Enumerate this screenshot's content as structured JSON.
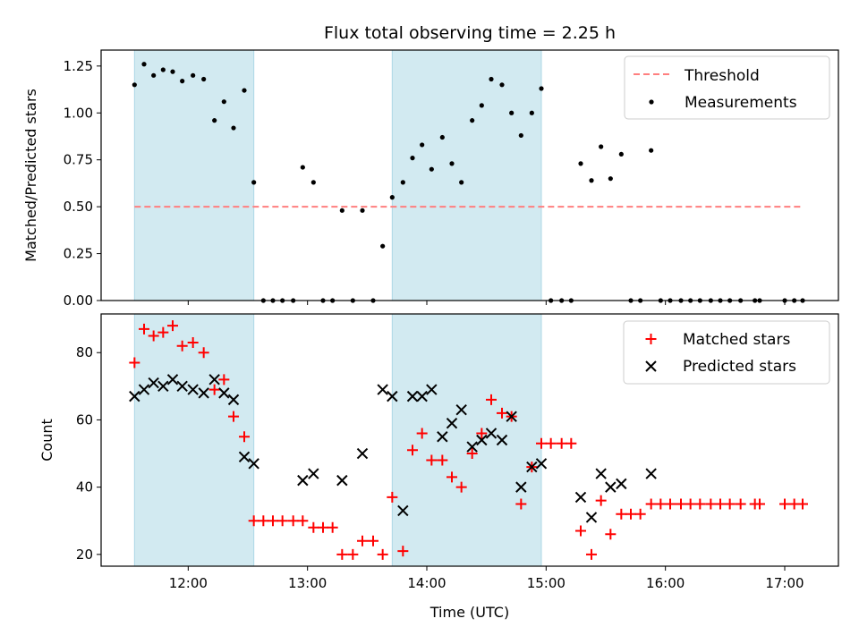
{
  "chart_data": [
    {
      "type": "scatter",
      "title": "Flux total observing time = 2.25 h",
      "xlabel": "",
      "ylabel": "Matched/Predicted stars",
      "xlim": [
        11.27,
        17.45
      ],
      "ylim": [
        0.0,
        1.335
      ],
      "x_ticks": [
        12,
        13,
        14,
        15,
        16,
        17
      ],
      "y_ticks": [
        0.0,
        0.25,
        0.5,
        0.75,
        1.0,
        1.25
      ],
      "y_tick_labels": [
        "0.00",
        "0.25",
        "0.50",
        "0.75",
        "1.00",
        "1.25"
      ],
      "shaded_x_ranges": [
        [
          11.55,
          12.55
        ],
        [
          13.71,
          14.96
        ]
      ],
      "shade_color": "#add8e6",
      "threshold": {
        "name": "Threshold",
        "y": 0.5,
        "x_range": [
          11.55,
          17.15
        ],
        "color": "#ff7f7f"
      },
      "legend": [
        "Threshold",
        "Measurements"
      ],
      "legend_loc": "upper right",
      "series": [
        {
          "name": "Measurements",
          "color": "#000000",
          "points": [
            [
              11.55,
              1.15
            ],
            [
              11.63,
              1.26
            ],
            [
              11.71,
              1.2
            ],
            [
              11.79,
              1.23
            ],
            [
              11.87,
              1.22
            ],
            [
              11.95,
              1.17
            ],
            [
              12.04,
              1.2
            ],
            [
              12.13,
              1.18
            ],
            [
              12.22,
              0.96
            ],
            [
              12.3,
              1.06
            ],
            [
              12.38,
              0.92
            ],
            [
              12.47,
              1.12
            ],
            [
              12.55,
              0.63
            ],
            [
              12.63,
              0.0
            ],
            [
              12.71,
              0.0
            ],
            [
              12.79,
              0.0
            ],
            [
              12.88,
              0.0
            ],
            [
              12.96,
              0.71
            ],
            [
              13.05,
              0.63
            ],
            [
              13.13,
              0.0
            ],
            [
              13.21,
              0.0
            ],
            [
              13.29,
              0.48
            ],
            [
              13.38,
              0.0
            ],
            [
              13.46,
              0.48
            ],
            [
              13.55,
              0.0
            ],
            [
              13.63,
              0.29
            ],
            [
              13.71,
              0.55
            ],
            [
              13.8,
              0.63
            ],
            [
              13.88,
              0.76
            ],
            [
              13.96,
              0.83
            ],
            [
              14.04,
              0.7
            ],
            [
              14.13,
              0.87
            ],
            [
              14.21,
              0.73
            ],
            [
              14.29,
              0.63
            ],
            [
              14.38,
              0.96
            ],
            [
              14.46,
              1.04
            ],
            [
              14.54,
              1.18
            ],
            [
              14.63,
              1.15
            ],
            [
              14.71,
              1.0
            ],
            [
              14.79,
              0.88
            ],
            [
              14.88,
              1.0
            ],
            [
              14.96,
              1.13
            ],
            [
              15.04,
              0.0
            ],
            [
              15.13,
              0.0
            ],
            [
              15.21,
              0.0
            ],
            [
              15.29,
              0.73
            ],
            [
              15.38,
              0.64
            ],
            [
              15.46,
              0.82
            ],
            [
              15.54,
              0.65
            ],
            [
              15.63,
              0.78
            ],
            [
              15.71,
              0.0
            ],
            [
              15.79,
              0.0
            ],
            [
              15.88,
              0.8
            ],
            [
              15.96,
              0.0
            ],
            [
              16.04,
              0.0
            ],
            [
              16.13,
              0.0
            ],
            [
              16.21,
              0.0
            ],
            [
              16.29,
              0.0
            ],
            [
              16.38,
              0.0
            ],
            [
              16.46,
              0.0
            ],
            [
              16.54,
              0.0
            ],
            [
              16.63,
              0.0
            ],
            [
              16.75,
              0.0
            ],
            [
              16.79,
              0.0
            ],
            [
              17.0,
              0.0
            ],
            [
              17.08,
              0.0
            ],
            [
              17.15,
              0.0
            ]
          ]
        }
      ]
    },
    {
      "type": "scatter",
      "title": "",
      "xlabel": "Time (UTC)",
      "ylabel": "Count",
      "xlim": [
        11.27,
        17.45
      ],
      "ylim": [
        16.5,
        91.5
      ],
      "x_ticks": [
        12,
        13,
        14,
        15,
        16,
        17
      ],
      "x_tick_labels": [
        "12:00",
        "13:00",
        "14:00",
        "15:00",
        "16:00",
        "17:00"
      ],
      "y_ticks": [
        20,
        40,
        60,
        80
      ],
      "y_tick_labels": [
        "20",
        "40",
        "60",
        "80"
      ],
      "shaded_x_ranges": [
        [
          11.55,
          12.55
        ],
        [
          13.71,
          14.96
        ]
      ],
      "shade_color": "#add8e6",
      "legend": [
        "Matched stars",
        "Predicted stars"
      ],
      "legend_loc": "upper right",
      "series": [
        {
          "name": "Matched stars",
          "marker": "+",
          "color": "#ff0000",
          "points": [
            [
              11.55,
              77
            ],
            [
              11.63,
              87
            ],
            [
              11.71,
              85
            ],
            [
              11.79,
              86
            ],
            [
              11.87,
              88
            ],
            [
              11.95,
              82
            ],
            [
              12.04,
              83
            ],
            [
              12.13,
              80
            ],
            [
              12.22,
              69
            ],
            [
              12.3,
              72
            ],
            [
              12.38,
              61
            ],
            [
              12.47,
              55
            ],
            [
              12.55,
              30
            ],
            [
              12.63,
              30
            ],
            [
              12.71,
              30
            ],
            [
              12.79,
              30
            ],
            [
              12.88,
              30
            ],
            [
              12.96,
              30
            ],
            [
              13.05,
              28
            ],
            [
              13.13,
              28
            ],
            [
              13.21,
              28
            ],
            [
              13.29,
              20
            ],
            [
              13.38,
              20
            ],
            [
              13.46,
              24
            ],
            [
              13.55,
              24
            ],
            [
              13.63,
              20
            ],
            [
              13.71,
              37
            ],
            [
              13.8,
              21
            ],
            [
              13.88,
              51
            ],
            [
              13.96,
              56
            ],
            [
              14.04,
              48
            ],
            [
              14.13,
              48
            ],
            [
              14.21,
              43
            ],
            [
              14.29,
              40
            ],
            [
              14.38,
              50
            ],
            [
              14.46,
              56
            ],
            [
              14.54,
              66
            ],
            [
              14.63,
              62
            ],
            [
              14.71,
              61
            ],
            [
              14.79,
              35
            ],
            [
              14.88,
              46
            ],
            [
              14.96,
              53
            ],
            [
              15.04,
              53
            ],
            [
              15.13,
              53
            ],
            [
              15.21,
              53
            ],
            [
              15.29,
              27
            ],
            [
              15.38,
              20
            ],
            [
              15.46,
              36
            ],
            [
              15.54,
              26
            ],
            [
              15.63,
              32
            ],
            [
              15.71,
              32
            ],
            [
              15.79,
              32
            ],
            [
              15.88,
              35
            ],
            [
              15.96,
              35
            ],
            [
              16.04,
              35
            ],
            [
              16.13,
              35
            ],
            [
              16.21,
              35
            ],
            [
              16.29,
              35
            ],
            [
              16.38,
              35
            ],
            [
              16.46,
              35
            ],
            [
              16.54,
              35
            ],
            [
              16.63,
              35
            ],
            [
              16.75,
              35
            ],
            [
              16.79,
              35
            ],
            [
              17.0,
              35
            ],
            [
              17.08,
              35
            ],
            [
              17.15,
              35
            ]
          ]
        },
        {
          "name": "Predicted stars",
          "marker": "x",
          "color": "#000000",
          "points": [
            [
              11.55,
              67
            ],
            [
              11.63,
              69
            ],
            [
              11.71,
              71
            ],
            [
              11.79,
              70
            ],
            [
              11.87,
              72
            ],
            [
              11.95,
              70
            ],
            [
              12.04,
              69
            ],
            [
              12.13,
              68
            ],
            [
              12.22,
              72
            ],
            [
              12.3,
              68
            ],
            [
              12.38,
              66
            ],
            [
              12.47,
              49
            ],
            [
              12.55,
              47
            ],
            [
              12.96,
              42
            ],
            [
              13.05,
              44
            ],
            [
              13.29,
              42
            ],
            [
              13.46,
              50
            ],
            [
              13.63,
              69
            ],
            [
              13.71,
              67
            ],
            [
              13.8,
              33
            ],
            [
              13.88,
              67
            ],
            [
              13.96,
              67
            ],
            [
              14.04,
              69
            ],
            [
              14.13,
              55
            ],
            [
              14.21,
              59
            ],
            [
              14.29,
              63
            ],
            [
              14.38,
              52
            ],
            [
              14.46,
              54
            ],
            [
              14.54,
              56
            ],
            [
              14.63,
              54
            ],
            [
              14.71,
              61
            ],
            [
              14.79,
              40
            ],
            [
              14.88,
              46
            ],
            [
              14.96,
              47
            ],
            [
              15.29,
              37
            ],
            [
              15.38,
              31
            ],
            [
              15.46,
              44
            ],
            [
              15.54,
              40
            ],
            [
              15.63,
              41
            ],
            [
              15.88,
              44
            ]
          ]
        }
      ]
    }
  ]
}
